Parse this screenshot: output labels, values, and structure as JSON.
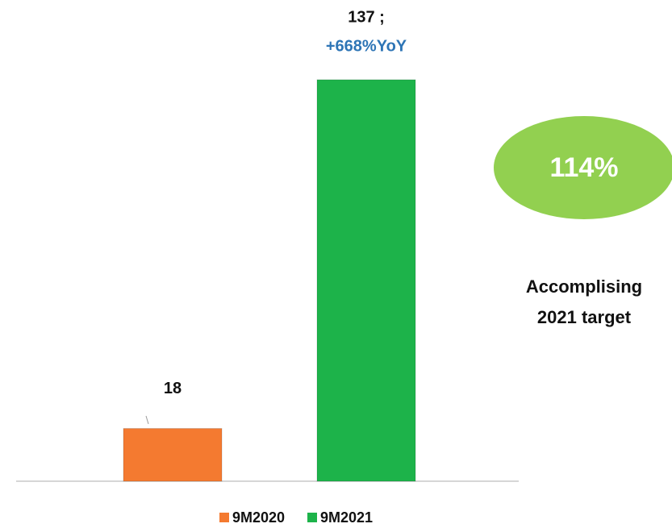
{
  "chart_data": {
    "type": "bar",
    "categories": [
      null
    ],
    "series": [
      {
        "name": "9M2020",
        "color": "#f47a30",
        "values": [
          18
        ]
      },
      {
        "name": "9M2021",
        "color": "#1db34a",
        "values": [
          137
        ],
        "value_labels": [
          "137 ;"
        ]
      }
    ],
    "ylim": [
      0,
      140
    ],
    "yoy_label": "+668%YoY",
    "target_badge": "114%",
    "target_note": [
      "Accomplising",
      "2021 target"
    ]
  }
}
